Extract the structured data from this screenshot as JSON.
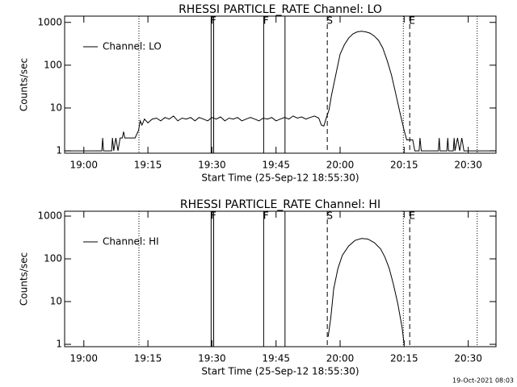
{
  "chart_data": [
    {
      "type": "line",
      "title": "RHESSI PARTICLE_RATE Channel: LO",
      "xlabel": "Start Time (25-Sep-12 18:55:30)",
      "ylabel": "Counts/sec",
      "log_y": true,
      "xlim": [
        -4.5,
        96.5
      ],
      "ylim": [
        0.88,
        1400
      ],
      "xticks": [
        {
          "value": 0,
          "label": "19:00"
        },
        {
          "value": 15,
          "label": "19:15"
        },
        {
          "value": 30,
          "label": "19:30"
        },
        {
          "value": 45,
          "label": "19:45"
        },
        {
          "value": 60,
          "label": "20:00"
        },
        {
          "value": 75,
          "label": "20:15"
        },
        {
          "value": 90,
          "label": "20:30"
        }
      ],
      "yticks": [
        1,
        10,
        100,
        1000
      ],
      "legend": "upper left",
      "markers": [
        {
          "x": 12.9,
          "style": "dotted"
        },
        {
          "x": 29.8,
          "style": "solid",
          "label": "F"
        },
        {
          "x": 30.4,
          "style": "solid"
        },
        {
          "x": 42.1,
          "style": "solid",
          "label": "F"
        },
        {
          "x": 47.1,
          "style": "solid"
        },
        {
          "x": 57.0,
          "style": "dashed",
          "label": "S"
        },
        {
          "x": 74.8,
          "style": "dotted"
        },
        {
          "x": 76.3,
          "style": "dashed",
          "label": "E"
        },
        {
          "x": 92.1,
          "style": "dotted"
        }
      ],
      "x": [
        -4.5,
        4.2,
        4.4,
        4.6,
        6.5,
        6.7,
        7,
        7.5,
        8,
        8.5,
        9,
        9.3,
        9.6,
        12,
        12.8,
        13.2,
        13.6,
        14.2,
        15,
        16,
        17,
        18,
        19,
        20,
        21,
        22,
        23,
        24,
        25,
        26,
        27,
        28,
        29,
        30,
        31,
        32,
        33,
        34,
        35,
        36,
        37,
        38,
        39,
        40,
        41,
        42,
        43,
        44,
        45,
        46,
        47,
        48,
        49,
        50,
        51,
        52,
        53,
        54,
        55,
        55.6,
        56.2,
        56.8,
        57.4,
        58,
        59,
        60,
        61,
        62,
        63,
        64,
        65,
        66,
        67,
        68,
        69,
        70,
        71,
        72,
        73,
        74,
        75,
        75.6,
        76,
        77,
        77.5,
        78.5,
        78.7,
        79,
        83,
        83.2,
        83.4,
        85,
        85.2,
        85.4,
        86.5,
        86.7,
        86.9,
        87.5,
        88,
        88.5,
        89,
        96.5
      ],
      "series": [
        {
          "name": "Channel: LO",
          "color": "#000000",
          "values": [
            1,
            1,
            2,
            1,
            1,
            2,
            1,
            2,
            1,
            2,
            2,
            2.8,
            2,
            2,
            3,
            5,
            4,
            5.5,
            4.5,
            5.5,
            5.8,
            5,
            6,
            5.5,
            6.5,
            5,
            5.8,
            5.5,
            6,
            5,
            6,
            5.5,
            5,
            6,
            5.5,
            6.2,
            5,
            5.8,
            5.5,
            6,
            5,
            5.5,
            6,
            5.5,
            5,
            5.8,
            5.5,
            6,
            5,
            5.5,
            6,
            5.5,
            6.5,
            5.8,
            6.2,
            5.5,
            6,
            6.5,
            5.8,
            4,
            3.8,
            6,
            9,
            20,
            60,
            180,
            300,
            430,
            540,
            600,
            620,
            600,
            560,
            480,
            380,
            250,
            130,
            60,
            22,
            8,
            3,
            1.8,
            1.8,
            1.8,
            1,
            1,
            2,
            1,
            1,
            2,
            1,
            1,
            2,
            1,
            1,
            2,
            1,
            2,
            1,
            2,
            1,
            1
          ]
        }
      ]
    },
    {
      "type": "line",
      "title": "RHESSI PARTICLE_RATE Channel: HI",
      "xlabel": "Start Time (25-Sep-12 18:55:30)",
      "ylabel": "Counts/sec",
      "log_y": true,
      "xlim": [
        -4.5,
        96.5
      ],
      "ylim": [
        0.88,
        1300
      ],
      "xticks": [
        {
          "value": 0,
          "label": "19:00"
        },
        {
          "value": 15,
          "label": "19:15"
        },
        {
          "value": 30,
          "label": "19:30"
        },
        {
          "value": 45,
          "label": "19:45"
        },
        {
          "value": 60,
          "label": "20:00"
        },
        {
          "value": 75,
          "label": "20:15"
        },
        {
          "value": 90,
          "label": "20:30"
        }
      ],
      "yticks": [
        1,
        10,
        100,
        1000
      ],
      "legend": "upper left",
      "markers": [
        {
          "x": 12.9,
          "style": "dotted"
        },
        {
          "x": 29.8,
          "style": "solid",
          "label": "F"
        },
        {
          "x": 30.4,
          "style": "solid"
        },
        {
          "x": 42.1,
          "style": "solid",
          "label": "F"
        },
        {
          "x": 47.1,
          "style": "solid"
        },
        {
          "x": 57.0,
          "style": "dashed",
          "label": "S"
        },
        {
          "x": 74.8,
          "style": "dotted"
        },
        {
          "x": 76.3,
          "style": "dashed",
          "label": "E"
        },
        {
          "x": 92.1,
          "style": "dotted"
        }
      ],
      "x": [
        57.2,
        57.8,
        58.5,
        59.5,
        60.5,
        62,
        63.5,
        65,
        66.5,
        68,
        69.5,
        70.5,
        71.5,
        72.5,
        73.5,
        74.5,
        75
      ],
      "series": [
        {
          "name": "Channel: HI",
          "color": "#000000",
          "values": [
            1.5,
            4,
            20,
            60,
            120,
            200,
            270,
            300,
            290,
            240,
            170,
            110,
            60,
            25,
            9,
            2.5,
            1
          ]
        }
      ]
    }
  ],
  "footer": "19-Oct-2021 08:03"
}
